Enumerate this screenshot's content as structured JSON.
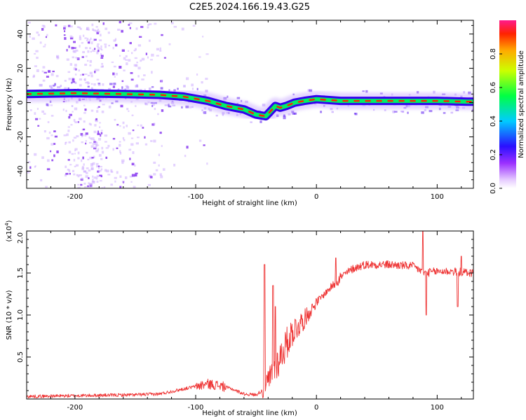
{
  "figure": {
    "title": "C2E5.2024.166.19.43.G25"
  },
  "colors": {
    "snr_line": "#ee3333",
    "ridge_core": "#ff2200",
    "ridge_mid": "#00ee66",
    "ridge_outer": "#3300ee",
    "speckle": "#9b30ff"
  },
  "chart_data": [
    {
      "type": "heatmap",
      "name": "spectrogram",
      "xlabel": "Height of straight line (km)",
      "ylabel": "Frequency (Hz)",
      "xlim": [
        -240,
        130
      ],
      "ylim": [
        -50,
        48
      ],
      "xticks": [
        -200,
        -100,
        0,
        100
      ],
      "yticks": [
        -40,
        -20,
        0,
        20,
        40
      ],
      "colorbar": {
        "label": "Normalized spectral amplitude",
        "range": [
          0,
          1
        ],
        "ticks": [
          "0.0",
          "0.2",
          "0.4",
          "0.6",
          "0.8"
        ],
        "colormap": "rainbow"
      },
      "ridge": {
        "x": [
          -240,
          -200,
          -160,
          -130,
          -110,
          -90,
          -75,
          -60,
          -50,
          -42,
          -38,
          -34,
          -30,
          -25,
          -18,
          -10,
          0,
          20,
          60,
          100,
          125,
          130
        ],
        "y": [
          5,
          5.5,
          5,
          4.5,
          3.5,
          1,
          -2,
          -4,
          -7,
          -8,
          -5,
          -2,
          -3,
          -2,
          0,
          1,
          2,
          1,
          1,
          1,
          0.5,
          0.5
        ]
      }
    },
    {
      "type": "line",
      "name": "snr",
      "xlabel": "Height of straight line (km)",
      "ylabel": "SNR (10 * v/v)",
      "y_multiplier": "(x10",
      "y_multiplier_exp": "4",
      "y_multiplier_close": ")",
      "xlim": [
        -240,
        130
      ],
      "ylim": [
        0,
        2.0
      ],
      "xticks": [
        -200,
        -100,
        0,
        100
      ],
      "yticks": [
        0.5,
        1.0,
        1.5,
        2.0
      ],
      "ytick_labels": [
        "0.5",
        "1.0",
        "1.5",
        "2.0"
      ],
      "trend": {
        "x": [
          -240,
          -150,
          -130,
          -110,
          -90,
          -80,
          -70,
          -60,
          -50,
          -45,
          -40,
          -35,
          -30,
          -25,
          -20,
          -10,
          0,
          10,
          20,
          30,
          40,
          60,
          80,
          90,
          100,
          110,
          130
        ],
        "y": [
          0.03,
          0.05,
          0.06,
          0.12,
          0.18,
          0.16,
          0.12,
          0.06,
          0.05,
          0.1,
          0.2,
          0.35,
          0.5,
          0.65,
          0.8,
          0.95,
          1.15,
          1.3,
          1.45,
          1.55,
          1.6,
          1.6,
          1.58,
          1.5,
          1.52,
          1.52,
          1.5
        ]
      },
      "spikes": [
        {
          "x": -43,
          "y": 1.6
        },
        {
          "x": -36,
          "y": 1.35
        },
        {
          "x": -34,
          "y": 1.1
        },
        {
          "x": 16,
          "y": 1.68
        },
        {
          "x": 88,
          "y": 2.0
        },
        {
          "x": 91,
          "y": 1.0
        },
        {
          "x": 117,
          "y": 1.1
        },
        {
          "x": 120,
          "y": 1.7
        }
      ]
    }
  ]
}
